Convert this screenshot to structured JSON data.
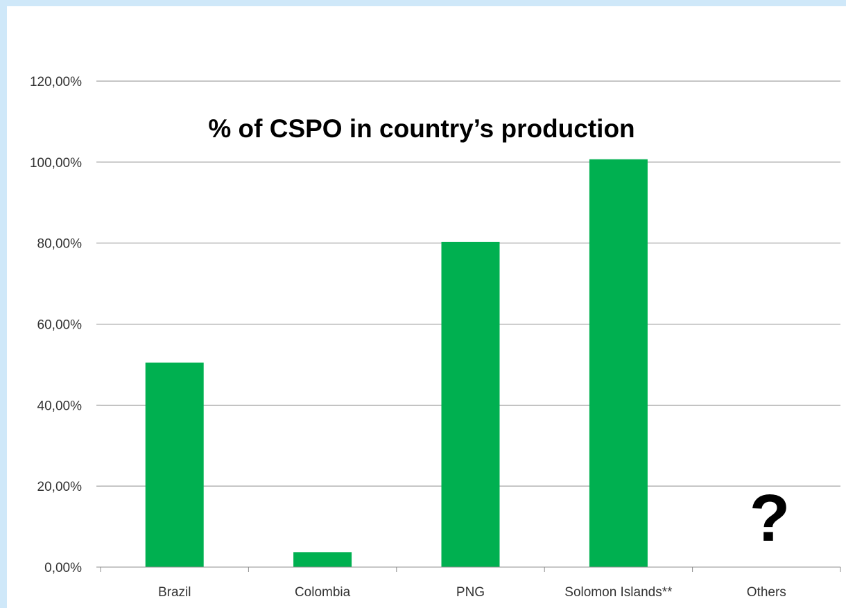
{
  "chart_data": {
    "type": "bar",
    "title": "% of CSPO in country’s production",
    "categories": [
      "Brazil",
      "Colombia",
      "PNG",
      "Solomon Islands**",
      "Others"
    ],
    "values": [
      50.5,
      3.7,
      80.3,
      100.7,
      null
    ],
    "ylim": [
      0,
      120
    ],
    "yticks": [
      0,
      20,
      40,
      60,
      80,
      100,
      120
    ],
    "ytick_labels": [
      "0,00%",
      "20,00%",
      "40,00%",
      "60,00%",
      "80,00%",
      "100,00%",
      "120,00%"
    ],
    "xlabel": "",
    "ylabel": "",
    "grid": true,
    "legend": "none",
    "bar_color": "#00b050",
    "annotation": "?"
  },
  "colors": {
    "frame": "#cfe8f9",
    "gridline": "#8c8c8c",
    "bar": "#00b050"
  }
}
